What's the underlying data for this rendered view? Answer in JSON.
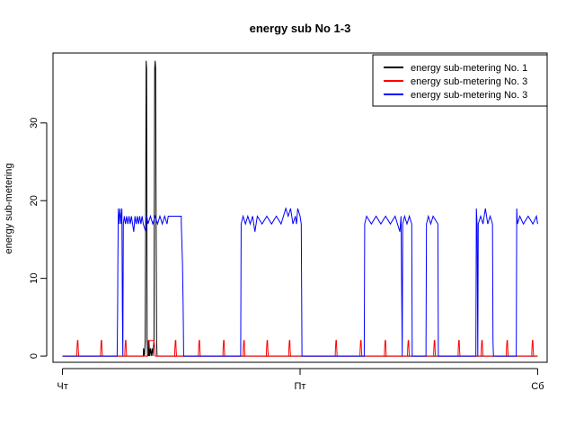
{
  "chart_data": {
    "type": "line",
    "title": "energy sub No 1-3",
    "xlabel": "",
    "ylabel": "energy sub-metering",
    "x_unit": "day",
    "xlim": [
      -0.04,
      2.04
    ],
    "ylim": [
      -0.8,
      39.0
    ],
    "x_ticks": [
      {
        "value": 0,
        "label": "Чт"
      },
      {
        "value": 1,
        "label": "Пт"
      },
      {
        "value": 2,
        "label": "Сб"
      }
    ],
    "y_ticks": [
      0,
      10,
      20,
      30
    ],
    "legend_position": "top-right",
    "grid": false,
    "series": [
      {
        "name": "energy sub-metering No. 1",
        "color": "#000000",
        "points": [
          [
            0,
            0
          ],
          [
            0.34,
            0
          ],
          [
            0.341,
            1
          ],
          [
            0.345,
            0
          ],
          [
            0.348,
            2
          ],
          [
            0.35,
            17
          ],
          [
            0.352,
            38
          ],
          [
            0.354,
            37
          ],
          [
            0.356,
            2
          ],
          [
            0.358,
            0
          ],
          [
            0.36,
            1
          ],
          [
            0.362,
            0
          ],
          [
            0.364,
            2
          ],
          [
            0.366,
            0
          ],
          [
            0.37,
            1
          ],
          [
            0.373,
            0
          ],
          [
            0.377,
            1
          ],
          [
            0.38,
            0
          ],
          [
            0.385,
            2
          ],
          [
            0.388,
            37
          ],
          [
            0.39,
            38
          ],
          [
            0.392,
            37
          ],
          [
            0.394,
            17
          ],
          [
            0.396,
            2
          ],
          [
            0.398,
            0
          ],
          [
            2,
            0
          ]
        ]
      },
      {
        "name": "energy sub-metering No. 3",
        "color": "#ff0000",
        "points": [
          [
            0,
            0
          ],
          [
            0.06,
            0
          ],
          [
            0.061,
            1
          ],
          [
            0.063,
            2
          ],
          [
            0.065,
            2
          ],
          [
            0.066,
            1
          ],
          [
            0.068,
            0
          ],
          [
            0.16,
            0
          ],
          [
            0.161,
            1
          ],
          [
            0.163,
            2
          ],
          [
            0.165,
            2
          ],
          [
            0.166,
            1
          ],
          [
            0.168,
            0
          ],
          [
            0.262,
            0
          ],
          [
            0.263,
            1
          ],
          [
            0.265,
            2
          ],
          [
            0.267,
            2
          ],
          [
            0.268,
            1
          ],
          [
            0.27,
            0
          ],
          [
            0.358,
            0
          ],
          [
            0.359,
            1
          ],
          [
            0.361,
            2
          ],
          [
            0.375,
            2
          ],
          [
            0.385,
            2
          ],
          [
            0.388,
            1
          ],
          [
            0.39,
            0
          ],
          [
            0.472,
            0
          ],
          [
            0.473,
            1
          ],
          [
            0.475,
            2
          ],
          [
            0.477,
            2
          ],
          [
            0.478,
            1
          ],
          [
            0.48,
            0
          ],
          [
            0.572,
            0
          ],
          [
            0.573,
            1
          ],
          [
            0.575,
            2
          ],
          [
            0.577,
            2
          ],
          [
            0.578,
            1
          ],
          [
            0.58,
            0
          ],
          [
            0.675,
            0
          ],
          [
            0.676,
            1
          ],
          [
            0.678,
            2
          ],
          [
            0.68,
            2
          ],
          [
            0.681,
            1
          ],
          [
            0.683,
            0
          ],
          [
            0.76,
            0
          ],
          [
            0.761,
            1
          ],
          [
            0.763,
            2
          ],
          [
            0.765,
            2
          ],
          [
            0.766,
            1
          ],
          [
            0.768,
            0
          ],
          [
            0.858,
            0
          ],
          [
            0.859,
            1
          ],
          [
            0.861,
            2
          ],
          [
            0.863,
            2
          ],
          [
            0.864,
            1
          ],
          [
            0.866,
            0
          ],
          [
            0.952,
            0
          ],
          [
            0.953,
            1
          ],
          [
            0.955,
            2
          ],
          [
            0.957,
            2
          ],
          [
            0.958,
            1
          ],
          [
            0.96,
            0
          ],
          [
            1.148,
            0
          ],
          [
            1.149,
            1
          ],
          [
            1.151,
            2
          ],
          [
            1.153,
            2
          ],
          [
            1.154,
            1
          ],
          [
            1.156,
            0
          ],
          [
            1.252,
            0
          ],
          [
            1.253,
            1
          ],
          [
            1.255,
            2
          ],
          [
            1.257,
            2
          ],
          [
            1.258,
            1
          ],
          [
            1.26,
            0
          ],
          [
            1.355,
            0
          ],
          [
            1.356,
            1
          ],
          [
            1.358,
            2
          ],
          [
            1.36,
            2
          ],
          [
            1.361,
            1
          ],
          [
            1.363,
            0
          ],
          [
            1.452,
            0
          ],
          [
            1.453,
            1
          ],
          [
            1.455,
            2
          ],
          [
            1.457,
            2
          ],
          [
            1.458,
            1
          ],
          [
            1.46,
            0
          ],
          [
            1.562,
            0
          ],
          [
            1.563,
            1
          ],
          [
            1.565,
            2
          ],
          [
            1.567,
            2
          ],
          [
            1.568,
            1
          ],
          [
            1.57,
            0
          ],
          [
            1.665,
            0
          ],
          [
            1.666,
            1
          ],
          [
            1.668,
            2
          ],
          [
            1.67,
            2
          ],
          [
            1.671,
            1
          ],
          [
            1.673,
            0
          ],
          [
            1.762,
            0
          ],
          [
            1.763,
            1
          ],
          [
            1.765,
            2
          ],
          [
            1.767,
            2
          ],
          [
            1.768,
            1
          ],
          [
            1.77,
            0
          ],
          [
            1.868,
            0
          ],
          [
            1.869,
            1
          ],
          [
            1.871,
            2
          ],
          [
            1.873,
            2
          ],
          [
            1.874,
            1
          ],
          [
            1.876,
            0
          ],
          [
            1.975,
            0
          ],
          [
            1.976,
            1
          ],
          [
            1.978,
            2
          ],
          [
            1.98,
            2
          ],
          [
            1.981,
            1
          ],
          [
            1.983,
            0
          ],
          [
            2,
            0
          ]
        ]
      },
      {
        "name": "energy sub-metering No. 3",
        "color": "#0000ff",
        "points": [
          [
            0,
            0
          ],
          [
            0.23,
            0
          ],
          [
            0.232,
            6
          ],
          [
            0.233,
            12
          ],
          [
            0.235,
            19
          ],
          [
            0.238,
            17
          ],
          [
            0.242,
            19
          ],
          [
            0.246,
            17
          ],
          [
            0.25,
            19
          ],
          [
            0.252,
            6
          ],
          [
            0.254,
            0
          ],
          [
            0.256,
            17
          ],
          [
            0.26,
            18
          ],
          [
            0.265,
            17
          ],
          [
            0.27,
            18
          ],
          [
            0.275,
            17
          ],
          [
            0.28,
            18
          ],
          [
            0.285,
            17
          ],
          [
            0.29,
            18
          ],
          [
            0.295,
            17
          ],
          [
            0.3,
            16
          ],
          [
            0.305,
            18
          ],
          [
            0.31,
            17
          ],
          [
            0.315,
            18
          ],
          [
            0.32,
            17
          ],
          [
            0.325,
            18
          ],
          [
            0.33,
            17
          ],
          [
            0.335,
            18
          ],
          [
            0.34,
            17
          ],
          [
            0.35,
            16
          ],
          [
            0.355,
            18
          ],
          [
            0.36,
            17
          ],
          [
            0.37,
            18
          ],
          [
            0.38,
            17
          ],
          [
            0.39,
            18
          ],
          [
            0.4,
            17
          ],
          [
            0.41,
            18
          ],
          [
            0.42,
            17
          ],
          [
            0.43,
            18
          ],
          [
            0.44,
            17
          ],
          [
            0.445,
            18
          ],
          [
            0.5,
            18
          ],
          [
            0.5,
            17
          ],
          [
            0.505,
            12
          ],
          [
            0.508,
            6
          ],
          [
            0.51,
            0
          ],
          [
            0.75,
            0
          ],
          [
            0.752,
            17
          ],
          [
            0.76,
            18
          ],
          [
            0.77,
            17
          ],
          [
            0.78,
            18
          ],
          [
            0.79,
            17
          ],
          [
            0.8,
            18
          ],
          [
            0.81,
            16
          ],
          [
            0.82,
            18
          ],
          [
            0.84,
            17
          ],
          [
            0.86,
            18
          ],
          [
            0.88,
            17
          ],
          [
            0.9,
            18
          ],
          [
            0.92,
            17
          ],
          [
            0.94,
            19
          ],
          [
            0.95,
            18
          ],
          [
            0.96,
            19
          ],
          [
            0.97,
            17
          ],
          [
            0.98,
            18
          ],
          [
            0.985,
            17
          ],
          [
            0.99,
            19
          ],
          [
            1.0,
            18
          ],
          [
            1.005,
            17
          ],
          [
            1.008,
            0
          ],
          [
            1.27,
            0
          ],
          [
            1.272,
            17
          ],
          [
            1.28,
            18
          ],
          [
            1.3,
            17
          ],
          [
            1.32,
            18
          ],
          [
            1.34,
            17
          ],
          [
            1.36,
            18
          ],
          [
            1.38,
            17
          ],
          [
            1.4,
            18
          ],
          [
            1.42,
            16
          ],
          [
            1.425,
            18
          ],
          [
            1.43,
            0
          ],
          [
            1.432,
            17
          ],
          [
            1.44,
            18
          ],
          [
            1.45,
            17
          ],
          [
            1.46,
            18
          ],
          [
            1.47,
            17
          ],
          [
            1.472,
            0
          ],
          [
            1.53,
            0
          ],
          [
            1.532,
            17
          ],
          [
            1.54,
            18
          ],
          [
            1.55,
            17
          ],
          [
            1.56,
            18
          ],
          [
            1.58,
            17
          ],
          [
            1.582,
            0
          ],
          [
            1.74,
            0
          ],
          [
            1.742,
            19
          ],
          [
            1.745,
            17
          ],
          [
            1.748,
            0
          ],
          [
            1.75,
            17
          ],
          [
            1.76,
            18
          ],
          [
            1.77,
            17
          ],
          [
            1.78,
            19
          ],
          [
            1.79,
            17
          ],
          [
            1.8,
            18
          ],
          [
            1.81,
            17
          ],
          [
            1.812,
            2
          ],
          [
            1.814,
            0
          ],
          [
            1.91,
            0
          ],
          [
            1.912,
            19
          ],
          [
            1.915,
            17
          ],
          [
            1.925,
            18
          ],
          [
            1.94,
            17
          ],
          [
            1.96,
            18
          ],
          [
            1.98,
            17
          ],
          [
            1.995,
            18
          ],
          [
            2.0,
            17
          ]
        ]
      }
    ]
  }
}
